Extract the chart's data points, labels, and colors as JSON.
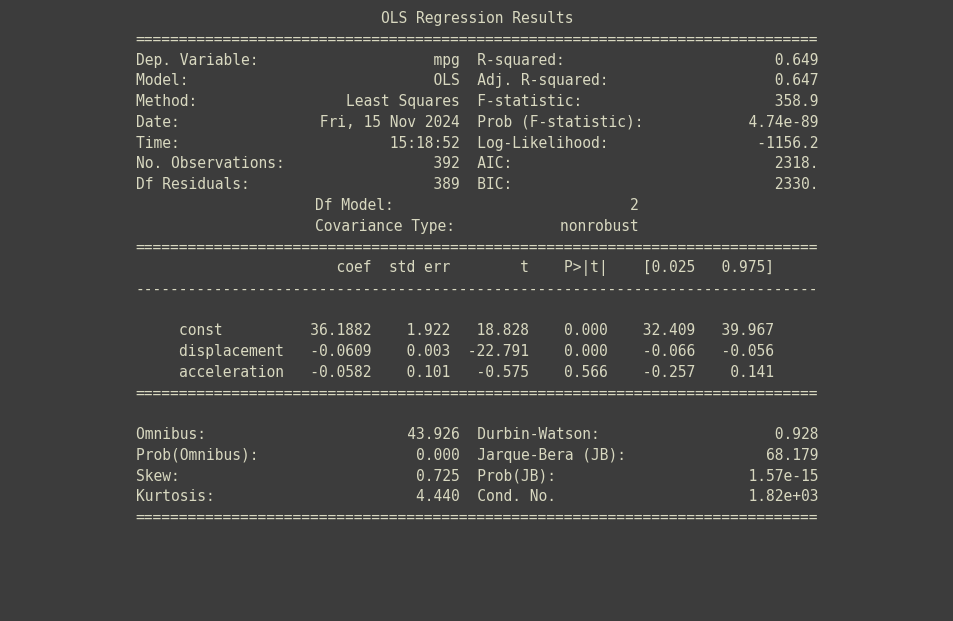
{
  "title": "OLS Regression Results",
  "bg_color": "#3c3c3c",
  "text_color": "#d8d8c0",
  "font_family": "DejaVu Sans Mono",
  "body_fontsize": 10.5,
  "sep_count": 78,
  "top_section": [
    [
      "Dep. Variable:",
      "mpg",
      "R-squared:",
      "0.649"
    ],
    [
      "Model:",
      "OLS",
      "Adj. R-squared:",
      "0.647"
    ],
    [
      "Method:",
      "Least Squares",
      "F-statistic:",
      "358.9"
    ],
    [
      "Date:",
      "Fri, 15 Nov 2024",
      "Prob (F-statistic):",
      "4.74e-89"
    ],
    [
      "Time:",
      "15:18:52",
      "Log-Likelihood:",
      "-1156.2"
    ],
    [
      "No. Observations:",
      "392",
      "AIC:",
      "2318."
    ],
    [
      "Df Residuals:",
      "389",
      "BIC:",
      "2330."
    ],
    [
      "Df Model:",
      "2",
      "",
      ""
    ],
    [
      "Covariance Type:",
      "nonrobust",
      "",
      ""
    ]
  ],
  "coef_header": [
    "",
    "coef",
    "std err",
    "t",
    "P>|t|",
    "[0.025",
    "0.975]"
  ],
  "coef_rows": [
    [
      "const",
      "36.1882",
      "1.922",
      "18.828",
      "0.000",
      "32.409",
      "39.967"
    ],
    [
      "displacement",
      "-0.0609",
      "0.003",
      "-22.791",
      "0.000",
      "-0.066",
      "-0.056"
    ],
    [
      "acceleration",
      "-0.0582",
      "0.101",
      "-0.575",
      "0.566",
      "-0.257",
      "0.141"
    ]
  ],
  "bottom_section": [
    [
      "Omnibus:",
      "43.926",
      "Durbin-Watson:",
      "0.928"
    ],
    [
      "Prob(Omnibus):",
      "0.000",
      "Jarque-Bera (JB):",
      "68.179"
    ],
    [
      "Skew:",
      "0.725",
      "Prob(JB):",
      "1.57e-15"
    ],
    [
      "Kurtosis:",
      "4.440",
      "Cond. No.",
      "1.82e+03"
    ]
  ]
}
